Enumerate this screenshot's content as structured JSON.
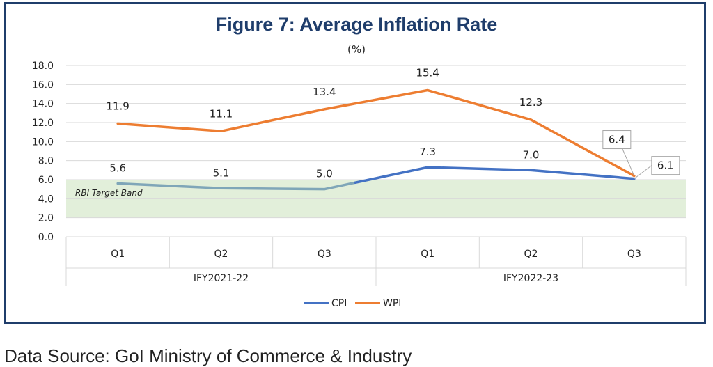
{
  "chart_data": {
    "type": "line",
    "title": "Figure 7: Average Inflation Rate",
    "subtitle": "(%)",
    "categories": [
      "Q1",
      "Q2",
      "Q3",
      "Q1",
      "Q2",
      "Q3"
    ],
    "groups": [
      {
        "label": "IFY2021-22",
        "start": 0,
        "end": 2
      },
      {
        "label": "IFY2022-23",
        "start": 3,
        "end": 5
      }
    ],
    "series": [
      {
        "name": "CPI",
        "color": "#4472c4",
        "values": [
          5.6,
          5.1,
          5.0,
          7.3,
          7.0,
          6.1
        ],
        "labels": [
          "5.6",
          "5.1",
          "5.0",
          "7.3",
          "7.0",
          "6.1"
        ]
      },
      {
        "name": "WPI",
        "color": "#ed7d31",
        "values": [
          11.9,
          11.1,
          13.4,
          15.4,
          12.3,
          6.4
        ],
        "labels": [
          "11.9",
          "11.1",
          "13.4",
          "15.4",
          "12.3",
          "6.4"
        ]
      }
    ],
    "ylim": [
      0,
      18
    ],
    "yticks": [
      "0.0",
      "2.0",
      "4.0",
      "6.0",
      "8.0",
      "10.0",
      "12.0",
      "14.0",
      "16.0",
      "18.0"
    ],
    "grid": true,
    "legend": "bottom",
    "target_band": {
      "label": "RBI Target Band",
      "low": 2,
      "high": 6,
      "color": "#e2efda"
    },
    "in_band_line_color": "#7fa6b8"
  },
  "footer": "Data Source: GoI Ministry of Commerce & Industry"
}
